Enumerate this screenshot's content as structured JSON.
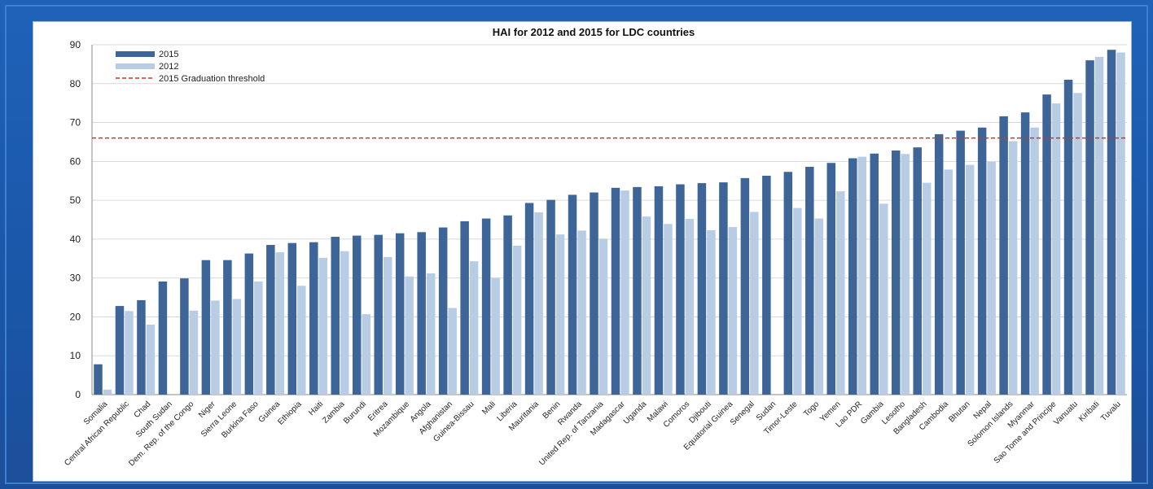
{
  "chart_data": {
    "type": "bar",
    "title": "HAI for 2012 and 2015 for LDC countries",
    "xlabel": "",
    "ylabel": "",
    "ylim": [
      0,
      90
    ],
    "yticks": [
      0,
      10,
      20,
      30,
      40,
      50,
      60,
      70,
      80,
      90
    ],
    "grid": true,
    "legend_position": "top-left",
    "categories": [
      "Somalia",
      "Central African Republic",
      "Chad",
      "South Sudan",
      "Dem. Rep. of the Congo",
      "Niger",
      "Sierra Leone",
      "Burkina Faso",
      "Guinea",
      "Ethiopia",
      "Haiti",
      "Zambia",
      "Burundi",
      "Eritrea",
      "Mozambique",
      "Angola",
      "Afghanistan",
      "Guinea-Bissau",
      "Mali",
      "Liberia",
      "Mauritania",
      "Benin",
      "Rwanda",
      "United Rep. of Tanzania",
      "Madagascar",
      "Uganda",
      "Malawi",
      "Comoros",
      "Djibouti",
      "Equatorial Guinea",
      "Senegal",
      "Sudan",
      "Timor-Leste",
      "Togo",
      "Yemen",
      "Lao PDR",
      "Gambia",
      "Lesotho",
      "Bangladesh",
      "Cambodia",
      "Bhutan",
      "Nepal",
      "Solomon Islands",
      "Myanmar",
      "Sao Tome and Principe",
      "Vanuatu",
      "Kiribati",
      "Tuvalu"
    ],
    "series": [
      {
        "name": "2015",
        "color": "#3e6597",
        "values": [
          7.8,
          22.8,
          24.3,
          29.1,
          29.9,
          34.6,
          34.6,
          36.3,
          38.5,
          39,
          39.2,
          40.6,
          40.9,
          41.1,
          41.5,
          41.8,
          43,
          44.6,
          45.3,
          46.1,
          49.3,
          50.1,
          51.4,
          52,
          53.2,
          53.4,
          53.6,
          54.1,
          54.4,
          54.6,
          55.7,
          56.3,
          57.3,
          58.6,
          59.6,
          60.8,
          62,
          62.8,
          63.6,
          67,
          67.9,
          68.7,
          71.6,
          72.6,
          77.2,
          81,
          86,
          88.7
        ]
      },
      {
        "name": "2012",
        "color": "#b8cce4",
        "values": [
          1.3,
          21.5,
          18,
          null,
          21.6,
          24.2,
          24.6,
          29.1,
          36.6,
          28,
          35.2,
          36.9,
          20.7,
          35.4,
          30.4,
          31.2,
          22.3,
          34.3,
          30,
          38.3,
          46.9,
          41.2,
          42.2,
          40.1,
          52.5,
          45.8,
          43.9,
          45.2,
          42.3,
          43.1,
          47,
          null,
          48,
          45.3,
          52.3,
          61.2,
          49.1,
          61.9,
          54.5,
          57.9,
          59.1,
          59.9,
          65.2,
          68.7,
          74.9,
          77.6,
          86.9,
          88
        ]
      }
    ],
    "threshold": {
      "name": "2015 Graduation threshold",
      "value": 66,
      "color": "#c0392b",
      "style": "dashed"
    }
  }
}
